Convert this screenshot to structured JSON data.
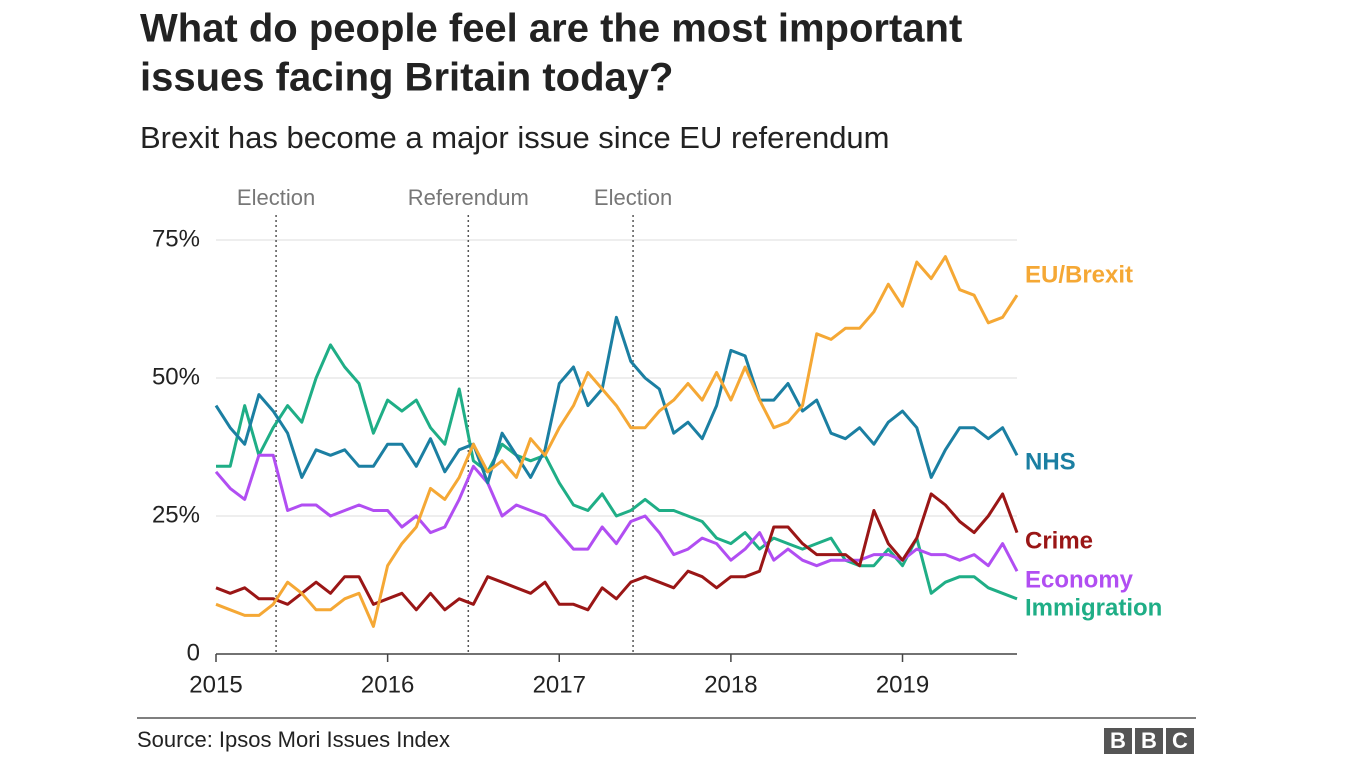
{
  "chart_data": {
    "type": "line",
    "title": [
      "What do people feel are the most important",
      "issues facing Britain today?"
    ],
    "subtitle": "Brexit has become a major issue since EU referendum",
    "source": "Source: Ipsos Mori Issues Index",
    "logo": [
      "B",
      "B",
      "C"
    ],
    "events": [
      {
        "x": 2015.35,
        "label": "Election"
      },
      {
        "x": 2016.47,
        "label": "Referendum"
      },
      {
        "x": 2017.43,
        "label": "Election"
      }
    ],
    "x": [
      2015,
      2015.083,
      2015.167,
      2015.25,
      2015.333,
      2015.417,
      2015.5,
      2015.583,
      2015.667,
      2015.75,
      2015.833,
      2015.917,
      2016,
      2016.083,
      2016.167,
      2016.25,
      2016.333,
      2016.417,
      2016.5,
      2016.583,
      2016.667,
      2016.75,
      2016.833,
      2016.917,
      2017,
      2017.083,
      2017.167,
      2017.25,
      2017.333,
      2017.417,
      2017.5,
      2017.583,
      2017.667,
      2017.75,
      2017.833,
      2017.917,
      2018,
      2018.083,
      2018.167,
      2018.25,
      2018.333,
      2018.417,
      2018.5,
      2018.583,
      2018.667,
      2018.75,
      2018.833,
      2018.917,
      2019,
      2019.083,
      2019.167,
      2019.25,
      2019.333,
      2019.417,
      2019.5,
      2019.583,
      2019.667
    ],
    "series": [
      {
        "name": "Immigration",
        "color": "#1fae86",
        "values": [
          34,
          34,
          45,
          36,
          41,
          45,
          42,
          50,
          56,
          52,
          49,
          40,
          46,
          44,
          46,
          41,
          38,
          48,
          35,
          33,
          38,
          36,
          35,
          36,
          31,
          27,
          26,
          29,
          25,
          26,
          28,
          26,
          26,
          25,
          24,
          21,
          20,
          22,
          19,
          21,
          20,
          19,
          20,
          21,
          17,
          16,
          16,
          19,
          16,
          21,
          11,
          13,
          14,
          14,
          12,
          11,
          10
        ]
      },
      {
        "name": "Economy",
        "color": "#b14ef2",
        "values": [
          33,
          30,
          28,
          36,
          36,
          26,
          27,
          27,
          25,
          26,
          27,
          26,
          26,
          23,
          25,
          22,
          23,
          28,
          34,
          31,
          25,
          27,
          26,
          25,
          22,
          19,
          19,
          23,
          20,
          24,
          25,
          22,
          18,
          19,
          21,
          20,
          17,
          19,
          22,
          17,
          19,
          17,
          16,
          17,
          17,
          17,
          18,
          18,
          17,
          19,
          18,
          18,
          17,
          18,
          16,
          20,
          15
        ]
      },
      {
        "name": "Crime",
        "color": "#9a1616",
        "values": [
          12,
          11,
          12,
          10,
          10,
          9,
          11,
          13,
          11,
          14,
          14,
          9,
          10,
          11,
          8,
          11,
          8,
          10,
          9,
          14,
          13,
          12,
          11,
          13,
          9,
          9,
          8,
          12,
          10,
          13,
          14,
          13,
          12,
          15,
          14,
          12,
          14,
          14,
          15,
          23,
          23,
          20,
          18,
          18,
          18,
          16,
          26,
          20,
          17,
          21,
          29,
          27,
          24,
          22,
          25,
          29,
          22
        ]
      },
      {
        "name": "NHS",
        "color": "#1b7fa2",
        "values": [
          45,
          41,
          38,
          47,
          44,
          40,
          32,
          37,
          36,
          37,
          34,
          34,
          38,
          38,
          34,
          39,
          33,
          37,
          38,
          31,
          40,
          36,
          32,
          37,
          49,
          52,
          45,
          48,
          61,
          53,
          50,
          48,
          40,
          42,
          39,
          45,
          55,
          54,
          46,
          46,
          49,
          44,
          46,
          40,
          39,
          41,
          38,
          42,
          44,
          41,
          32,
          37,
          41,
          41,
          39,
          41,
          36
        ]
      },
      {
        "name": "EU/Brexit",
        "color": "#f5a835",
        "values": [
          9,
          8,
          7,
          7,
          9,
          13,
          11,
          8,
          8,
          10,
          11,
          5,
          16,
          20,
          23,
          30,
          28,
          32,
          38,
          33,
          35,
          32,
          39,
          36,
          41,
          45,
          51,
          48,
          45,
          41,
          41,
          44,
          46,
          49,
          46,
          51,
          46,
          52,
          46,
          41,
          42,
          45,
          58,
          57,
          59,
          59,
          62,
          67,
          63,
          71,
          68,
          72,
          66,
          65,
          60,
          61,
          65
        ]
      }
    ],
    "xlim": [
      2015,
      2019.667
    ],
    "ylim": [
      0,
      75
    ],
    "xticks": [
      2015,
      2016,
      2017,
      2018,
      2019
    ],
    "yticks": [
      0,
      {
        "value": 25,
        "label": "25%"
      },
      {
        "value": 50,
        "label": "50%"
      },
      {
        "value": 75,
        "label": "75%"
      }
    ],
    "grid": true
  }
}
